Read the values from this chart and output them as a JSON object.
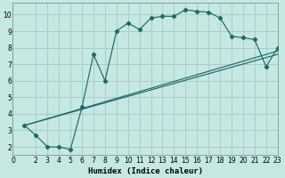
{
  "xlabel": "Humidex (Indice chaleur)",
  "bg_color": "#c5e8e3",
  "grid_color": "#aacccc",
  "line_color": "#1a6b6b",
  "spine_color": "#7a9a9a",
  "xlim": [
    0,
    23
  ],
  "ylim": [
    1.5,
    10.7
  ],
  "xticks": [
    0,
    2,
    3,
    4,
    5,
    6,
    7,
    8,
    9,
    10,
    11,
    12,
    13,
    14,
    15,
    16,
    17,
    18,
    19,
    20,
    21,
    22,
    23
  ],
  "yticks": [
    2,
    3,
    4,
    5,
    6,
    7,
    8,
    9,
    10
  ],
  "curve_x": [
    1,
    2,
    3,
    4,
    5,
    6,
    7,
    8,
    9,
    10,
    11,
    12,
    13,
    14,
    15,
    16,
    17,
    18,
    19,
    20,
    21,
    22,
    23
  ],
  "curve_y": [
    3.3,
    2.7,
    2.0,
    2.0,
    1.85,
    4.4,
    7.6,
    6.0,
    9.0,
    9.5,
    9.1,
    9.8,
    9.9,
    9.9,
    10.3,
    10.2,
    10.15,
    9.8,
    8.7,
    8.6,
    8.5,
    6.85,
    8.0
  ],
  "line2_x": [
    1,
    23
  ],
  "line2_y": [
    3.3,
    7.8
  ],
  "line3_x": [
    1,
    23
  ],
  "line3_y": [
    3.3,
    7.6
  ]
}
